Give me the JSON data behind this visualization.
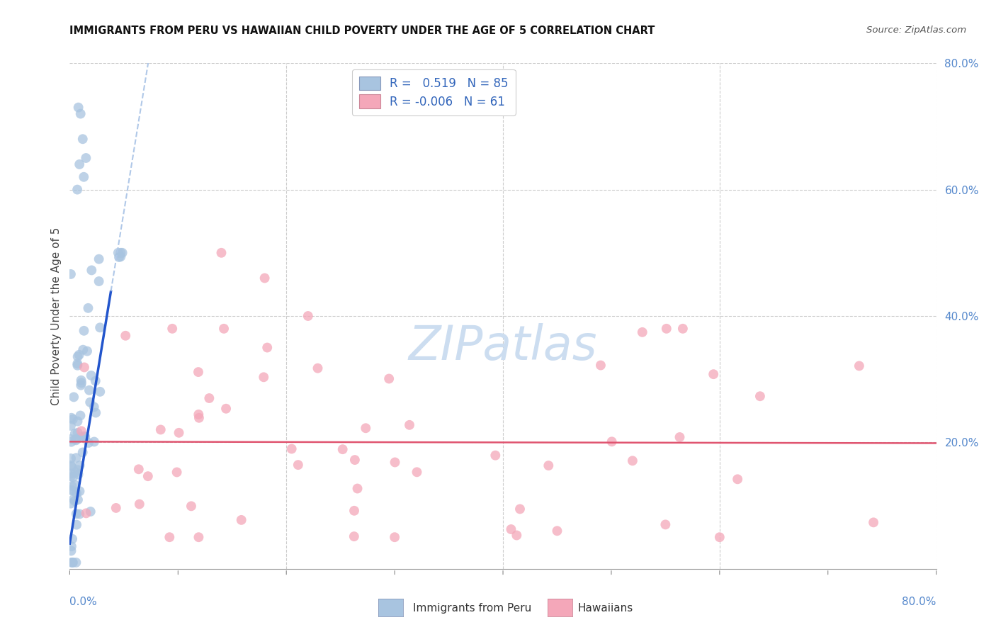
{
  "title": "IMMIGRANTS FROM PERU VS HAWAIIAN CHILD POVERTY UNDER THE AGE OF 5 CORRELATION CHART",
  "source": "Source: ZipAtlas.com",
  "ylabel": "Child Poverty Under the Age of 5",
  "legend_blue_r": "0.519",
  "legend_blue_n": "85",
  "legend_pink_r": "-0.006",
  "legend_pink_n": "61",
  "legend_label_blue": "Immigrants from Peru",
  "legend_label_pink": "Hawaiians",
  "blue_color": "#a8c4e0",
  "pink_color": "#f4a7b9",
  "trendline_blue_solid": "#2255cc",
  "trendline_blue_dashed": "#b0c8e8",
  "trendline_pink_color": "#e05570",
  "grid_color": "#cccccc",
  "watermark_color": "#ccddf0",
  "xlim": [
    0.0,
    0.8
  ],
  "ylim": [
    0.0,
    0.8
  ],
  "ytick_vals": [
    0.2,
    0.4,
    0.6,
    0.8
  ],
  "ytick_labels": [
    "20.0%",
    "40.0%",
    "60.0%",
    "80.0%"
  ],
  "xtick_left_val": 0.0,
  "xtick_left_label": "0.0%",
  "xtick_right_val": 0.8,
  "xtick_right_label": "80.0%"
}
